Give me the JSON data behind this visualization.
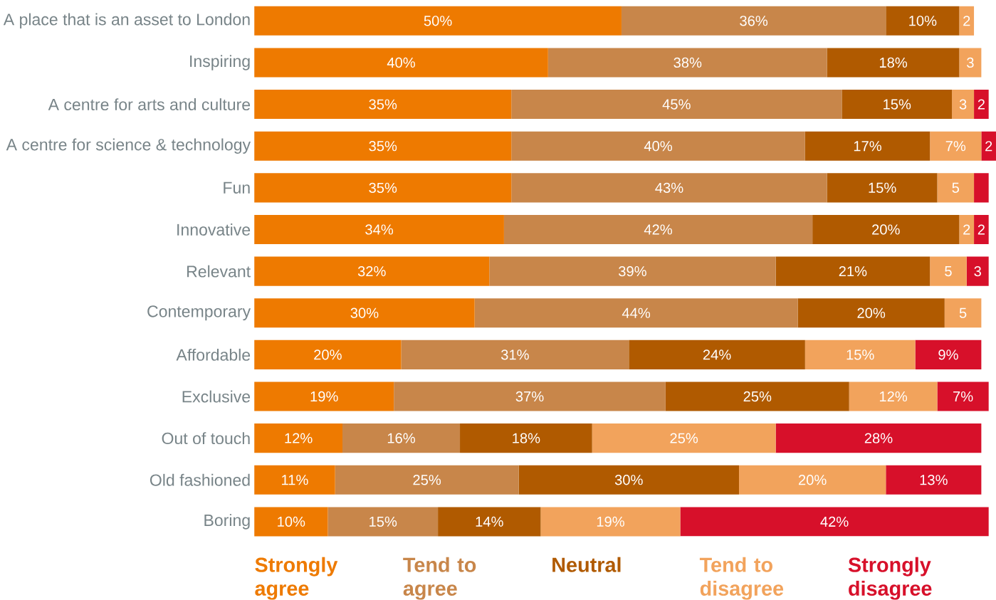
{
  "chart_data": {
    "type": "bar",
    "orientation": "horizontal",
    "stacked": true,
    "legend": "bottom",
    "tick_labels": "y",
    "categories": [
      "A place that is an asset to London",
      "Inspiring",
      "A centre for arts and culture",
      "A centre for science & technology",
      "Fun",
      "Innovative",
      "Relevant",
      "Contemporary",
      "Affordable",
      "Exclusive",
      "Out of touch",
      "Old fashioned",
      "Boring"
    ],
    "series": [
      {
        "name": "Strongly agree",
        "color": "#ee7a00",
        "values": [
          50,
          40,
          35,
          35,
          35,
          34,
          32,
          30,
          20,
          19,
          12,
          11,
          10
        ],
        "value_labels": [
          "50%",
          "40%",
          "35%",
          "35%",
          "35%",
          "34%",
          "32%",
          "30%",
          "20%",
          "19%",
          "12%",
          "11%",
          "10%"
        ]
      },
      {
        "name": "Tend to agree",
        "color": "#c8864a",
        "values": [
          36,
          38,
          45,
          40,
          43,
          42,
          39,
          44,
          31,
          37,
          16,
          25,
          15
        ],
        "value_labels": [
          "36%",
          "38%",
          "45%",
          "40%",
          "43%",
          "42%",
          "39%",
          "44%",
          "31%",
          "37%",
          "16%",
          "25%",
          "15%"
        ]
      },
      {
        "name": "Neutral",
        "color": "#b05a00",
        "values": [
          10,
          18,
          15,
          17,
          15,
          20,
          21,
          20,
          24,
          25,
          18,
          30,
          14
        ],
        "value_labels": [
          "10%",
          "18%",
          "15%",
          "17%",
          "15%",
          "20%",
          "21%",
          "20%",
          "24%",
          "25%",
          "18%",
          "30%",
          "14%"
        ]
      },
      {
        "name": "Tend to disagree",
        "color": "#f2a35c",
        "values": [
          2,
          3,
          3,
          7,
          5,
          2,
          5,
          5,
          15,
          12,
          25,
          20,
          19
        ],
        "value_labels": [
          "2",
          "3",
          "3",
          "7%",
          "5",
          "2",
          "5",
          "5",
          "15%",
          "12%",
          "25%",
          "20%",
          "19%"
        ]
      },
      {
        "name": "Strongly disagree",
        "color": "#d7102a",
        "values": [
          null,
          null,
          2,
          2,
          2,
          2,
          3,
          null,
          9,
          7,
          28,
          13,
          42
        ],
        "value_labels": [
          null,
          null,
          "2",
          "2",
          null,
          "2",
          "3",
          null,
          "9%",
          "7%",
          "28%",
          "13%",
          "42%"
        ]
      }
    ]
  }
}
